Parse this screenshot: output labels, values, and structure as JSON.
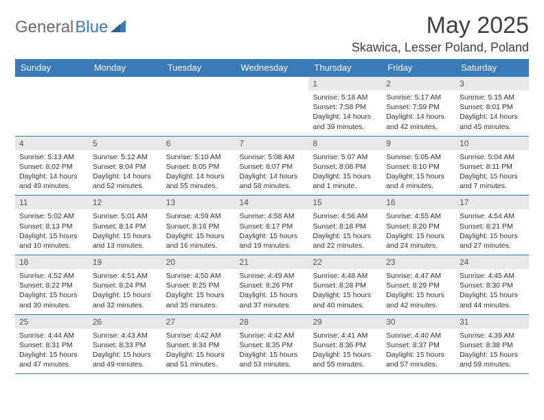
{
  "brand": {
    "part1": "General",
    "part2": "Blue"
  },
  "title": "May 2025",
  "location": "Skawica, Lesser Poland, Poland",
  "colors": {
    "header_bg": "#3a7ab8",
    "header_text": "#ffffff",
    "daynum_bg": "#e8e8e8",
    "border": "#3a7ab8",
    "body_text": "#333333",
    "logo_gray": "#6a6a6a",
    "logo_blue": "#3a7ab8"
  },
  "typography": {
    "title_fontsize": 34,
    "location_fontsize": 18,
    "header_fontsize": 13,
    "daynum_fontsize": 12,
    "cell_fontsize": 10.5
  },
  "weekdays": [
    "Sunday",
    "Monday",
    "Tuesday",
    "Wednesday",
    "Thursday",
    "Friday",
    "Saturday"
  ],
  "weeks": [
    [
      null,
      null,
      null,
      null,
      {
        "n": "1",
        "sr": "5:18 AM",
        "ss": "7:58 PM",
        "dl": "14 hours and 39 minutes."
      },
      {
        "n": "2",
        "sr": "5:17 AM",
        "ss": "7:59 PM",
        "dl": "14 hours and 42 minutes."
      },
      {
        "n": "3",
        "sr": "5:15 AM",
        "ss": "8:01 PM",
        "dl": "14 hours and 45 minutes."
      }
    ],
    [
      {
        "n": "4",
        "sr": "5:13 AM",
        "ss": "8:02 PM",
        "dl": "14 hours and 49 minutes."
      },
      {
        "n": "5",
        "sr": "5:12 AM",
        "ss": "8:04 PM",
        "dl": "14 hours and 52 minutes."
      },
      {
        "n": "6",
        "sr": "5:10 AM",
        "ss": "8:05 PM",
        "dl": "14 hours and 55 minutes."
      },
      {
        "n": "7",
        "sr": "5:08 AM",
        "ss": "8:07 PM",
        "dl": "14 hours and 58 minutes."
      },
      {
        "n": "8",
        "sr": "5:07 AM",
        "ss": "8:08 PM",
        "dl": "15 hours and 1 minute."
      },
      {
        "n": "9",
        "sr": "5:05 AM",
        "ss": "8:10 PM",
        "dl": "15 hours and 4 minutes."
      },
      {
        "n": "10",
        "sr": "5:04 AM",
        "ss": "8:11 PM",
        "dl": "15 hours and 7 minutes."
      }
    ],
    [
      {
        "n": "11",
        "sr": "5:02 AM",
        "ss": "8:13 PM",
        "dl": "15 hours and 10 minutes."
      },
      {
        "n": "12",
        "sr": "5:01 AM",
        "ss": "8:14 PM",
        "dl": "15 hours and 13 minutes."
      },
      {
        "n": "13",
        "sr": "4:59 AM",
        "ss": "8:16 PM",
        "dl": "15 hours and 16 minutes."
      },
      {
        "n": "14",
        "sr": "4:58 AM",
        "ss": "8:17 PM",
        "dl": "15 hours and 19 minutes."
      },
      {
        "n": "15",
        "sr": "4:56 AM",
        "ss": "8:18 PM",
        "dl": "15 hours and 22 minutes."
      },
      {
        "n": "16",
        "sr": "4:55 AM",
        "ss": "8:20 PM",
        "dl": "15 hours and 24 minutes."
      },
      {
        "n": "17",
        "sr": "4:54 AM",
        "ss": "8:21 PM",
        "dl": "15 hours and 27 minutes."
      }
    ],
    [
      {
        "n": "18",
        "sr": "4:52 AM",
        "ss": "8:22 PM",
        "dl": "15 hours and 30 minutes."
      },
      {
        "n": "19",
        "sr": "4:51 AM",
        "ss": "8:24 PM",
        "dl": "15 hours and 32 minutes."
      },
      {
        "n": "20",
        "sr": "4:50 AM",
        "ss": "8:25 PM",
        "dl": "15 hours and 35 minutes."
      },
      {
        "n": "21",
        "sr": "4:49 AM",
        "ss": "8:26 PM",
        "dl": "15 hours and 37 minutes."
      },
      {
        "n": "22",
        "sr": "4:48 AM",
        "ss": "8:28 PM",
        "dl": "15 hours and 40 minutes."
      },
      {
        "n": "23",
        "sr": "4:47 AM",
        "ss": "8:29 PM",
        "dl": "15 hours and 42 minutes."
      },
      {
        "n": "24",
        "sr": "4:45 AM",
        "ss": "8:30 PM",
        "dl": "15 hours and 44 minutes."
      }
    ],
    [
      {
        "n": "25",
        "sr": "4:44 AM",
        "ss": "8:31 PM",
        "dl": "15 hours and 47 minutes."
      },
      {
        "n": "26",
        "sr": "4:43 AM",
        "ss": "8:33 PM",
        "dl": "15 hours and 49 minutes."
      },
      {
        "n": "27",
        "sr": "4:42 AM",
        "ss": "8:34 PM",
        "dl": "15 hours and 51 minutes."
      },
      {
        "n": "28",
        "sr": "4:42 AM",
        "ss": "8:35 PM",
        "dl": "15 hours and 53 minutes."
      },
      {
        "n": "29",
        "sr": "4:41 AM",
        "ss": "8:36 PM",
        "dl": "15 hours and 55 minutes."
      },
      {
        "n": "30",
        "sr": "4:40 AM",
        "ss": "8:37 PM",
        "dl": "15 hours and 57 minutes."
      },
      {
        "n": "31",
        "sr": "4:39 AM",
        "ss": "8:38 PM",
        "dl": "15 hours and 59 minutes."
      }
    ]
  ],
  "labels": {
    "sunrise": "Sunrise:",
    "sunset": "Sunset:",
    "daylight": "Daylight:"
  }
}
